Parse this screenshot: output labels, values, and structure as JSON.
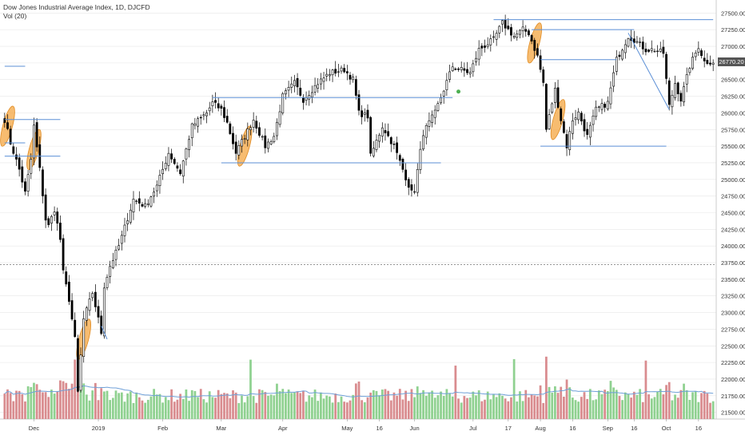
{
  "legend": {
    "title": "Dow Jones Industrial Average Index, 1D, DJCFD",
    "volume_label": "Vol (20)"
  },
  "last_price_label": "26770.20",
  "colors": {
    "up": "#ffffff",
    "down": "#000000",
    "candle_border": "#000000",
    "vol_up": "#8fd190",
    "vol_down": "#d98c8f",
    "vol_ma": "#6fa0d8",
    "trendline": "#5b8fd6",
    "highlight": "#f4a640",
    "axis_text": "#333333",
    "grid": "#e8e8e8",
    "reference_line": "#888888",
    "badge": "#555555",
    "marker": "#4caf50"
  },
  "chart_data": {
    "type": "candlestick",
    "title": "Dow Jones Industrial Average Index, 1D, DJCFD",
    "ylim": [
      21400,
      27600
    ],
    "y_ticks": [
      21500,
      21750,
      22000,
      22250,
      22500,
      22750,
      23000,
      23250,
      23500,
      23750,
      24000,
      24250,
      24500,
      24750,
      25000,
      25250,
      25500,
      25750,
      26000,
      26250,
      26500,
      26750,
      27000,
      27250,
      27500
    ],
    "x_ticks": [
      {
        "label": "Dec",
        "date": "2018-12-03"
      },
      {
        "label": "2019",
        "date": "2019-01-02"
      },
      {
        "label": "Feb",
        "date": "2019-02-01"
      },
      {
        "label": "Mar",
        "date": "2019-03-01"
      },
      {
        "label": "Apr",
        "date": "2019-04-01"
      },
      {
        "label": "May",
        "date": "2019-05-01"
      },
      {
        "label": "16",
        "date": "2019-05-16"
      },
      {
        "label": "Jun",
        "date": "2019-06-03"
      },
      {
        "label": "Jul",
        "date": "2019-07-01"
      },
      {
        "label": "17",
        "date": "2019-07-17"
      },
      {
        "label": "Aug",
        "date": "2019-08-01"
      },
      {
        "label": "16",
        "date": "2019-08-16"
      },
      {
        "label": "Sep",
        "date": "2019-09-03"
      },
      {
        "label": "16",
        "date": "2019-09-16"
      },
      {
        "label": "Oct",
        "date": "2019-10-01"
      },
      {
        "label": "16",
        "date": "2019-10-16"
      }
    ],
    "date_range": [
      "2018-11-19",
      "2019-10-23"
    ],
    "last_price": 26770.2,
    "reference_line": 23720,
    "close_anchors": [
      [
        "2018-11-19",
        25900
      ],
      [
        "2018-11-21",
        25550
      ],
      [
        "2018-11-26",
        25150
      ],
      [
        "2018-11-28",
        24800
      ],
      [
        "2018-11-30",
        25300
      ],
      [
        "2018-12-03",
        25800
      ],
      [
        "2018-12-05",
        25150
      ],
      [
        "2018-12-07",
        24400
      ],
      [
        "2018-12-10",
        24300
      ],
      [
        "2018-12-12",
        24550
      ],
      [
        "2018-12-14",
        24100
      ],
      [
        "2018-12-17",
        23600
      ],
      [
        "2018-12-19",
        23200
      ],
      [
        "2018-12-21",
        22600
      ],
      [
        "2018-12-24",
        21800
      ],
      [
        "2018-12-26",
        22900
      ],
      [
        "2018-12-31",
        23300
      ],
      [
        "2019-01-03",
        22700
      ],
      [
        "2019-01-04",
        23400
      ],
      [
        "2019-01-08",
        23700
      ],
      [
        "2019-01-11",
        24000
      ],
      [
        "2019-01-18",
        24700
      ],
      [
        "2019-01-24",
        24600
      ],
      [
        "2019-01-30",
        24900
      ],
      [
        "2019-02-05",
        25400
      ],
      [
        "2019-02-11",
        25100
      ],
      [
        "2019-02-15",
        25800
      ],
      [
        "2019-02-22",
        26000
      ],
      [
        "2019-02-26",
        26150
      ],
      [
        "2019-03-01",
        26050
      ],
      [
        "2019-03-05",
        25850
      ],
      [
        "2019-03-08",
        25400
      ],
      [
        "2019-03-13",
        25650
      ],
      [
        "2019-03-18",
        25900
      ],
      [
        "2019-03-22",
        25500
      ],
      [
        "2019-03-27",
        25650
      ],
      [
        "2019-04-01",
        26250
      ],
      [
        "2019-04-05",
        26450
      ],
      [
        "2019-04-10",
        26200
      ],
      [
        "2019-04-17",
        26450
      ],
      [
        "2019-04-23",
        26600
      ],
      [
        "2019-04-30",
        26650
      ],
      [
        "2019-05-03",
        26500
      ],
      [
        "2019-05-07",
        26000
      ],
      [
        "2019-05-10",
        25950
      ],
      [
        "2019-05-13",
        25350
      ],
      [
        "2019-05-17",
        25800
      ],
      [
        "2019-05-23",
        25500
      ],
      [
        "2019-05-31",
        24800
      ],
      [
        "2019-06-03",
        24850
      ],
      [
        "2019-06-06",
        25700
      ],
      [
        "2019-06-12",
        26000
      ],
      [
        "2019-06-20",
        26700
      ],
      [
        "2019-06-28",
        26600
      ],
      [
        "2019-07-03",
        26950
      ],
      [
        "2019-07-10",
        27100
      ],
      [
        "2019-07-15",
        27350
      ],
      [
        "2019-07-19",
        27150
      ],
      [
        "2019-07-24",
        27250
      ],
      [
        "2019-07-26",
        27200
      ],
      [
        "2019-07-31",
        26850
      ],
      [
        "2019-08-02",
        26450
      ],
      [
        "2019-08-05",
        25750
      ],
      [
        "2019-08-08",
        26350
      ],
      [
        "2019-08-12",
        25900
      ],
      [
        "2019-08-14",
        25500
      ],
      [
        "2019-08-16",
        25900
      ],
      [
        "2019-08-20",
        26000
      ],
      [
        "2019-08-23",
        25650
      ],
      [
        "2019-08-28",
        26050
      ],
      [
        "2019-09-03",
        26150
      ],
      [
        "2019-09-06",
        26800
      ],
      [
        "2019-09-12",
        27150
      ],
      [
        "2019-09-16",
        27100
      ],
      [
        "2019-09-20",
        26950
      ],
      [
        "2019-09-25",
        26950
      ],
      [
        "2019-09-30",
        26900
      ],
      [
        "2019-10-02",
        26100
      ],
      [
        "2019-10-04",
        26450
      ],
      [
        "2019-10-08",
        26200
      ],
      [
        "2019-10-11",
        26700
      ],
      [
        "2019-10-16",
        27000
      ],
      [
        "2019-10-18",
        26770
      ],
      [
        "2019-10-23",
        26770
      ]
    ],
    "volume": {
      "label": "Vol (20)",
      "base": 21500,
      "spike_dates": [
        "2018-12-21",
        "2019-03-15",
        "2019-06-21",
        "2019-07-19",
        "2019-08-05",
        "2019-09-20"
      ]
    },
    "horizontal_levels": [
      {
        "from": "2018-11-19",
        "to": "2018-11-28",
        "value": 26700
      },
      {
        "from": "2018-11-19",
        "to": "2018-12-14",
        "value": 25900
      },
      {
        "from": "2018-11-19",
        "to": "2018-11-28",
        "value": 25550
      },
      {
        "from": "2018-11-19",
        "to": "2018-12-14",
        "value": 25350
      },
      {
        "from": "2019-02-26",
        "to": "2019-06-20",
        "value": 26230
      },
      {
        "from": "2019-03-01",
        "to": "2019-06-14",
        "value": 25250
      },
      {
        "from": "2019-07-10",
        "to": "2019-10-23",
        "value": 27400
      },
      {
        "from": "2019-07-29",
        "to": "2019-09-16",
        "value": 27250
      },
      {
        "from": "2019-08-01",
        "to": "2019-09-06",
        "value": 26800
      },
      {
        "from": "2019-08-01",
        "to": "2019-10-01",
        "value": 25500
      }
    ],
    "trend_lines": [
      {
        "from": [
          "2019-09-12",
          27200
        ],
        "to": [
          "2019-10-02",
          26050
        ]
      },
      {
        "from": [
          "2019-01-03",
          22800
        ],
        "to": [
          "2019-01-07",
          22600
        ]
      }
    ],
    "highlights": [
      {
        "date": "2018-11-20",
        "value": 25800
      },
      {
        "date": "2018-12-03",
        "value": 25450
      },
      {
        "date": "2018-12-26",
        "value": 22600
      },
      {
        "date": "2019-03-13",
        "value": 25500
      },
      {
        "date": "2019-07-30",
        "value": 27050
      },
      {
        "date": "2019-08-09",
        "value": 25900
      }
    ],
    "markers": [
      {
        "date": "2019-06-24",
        "value": 26320
      }
    ]
  }
}
